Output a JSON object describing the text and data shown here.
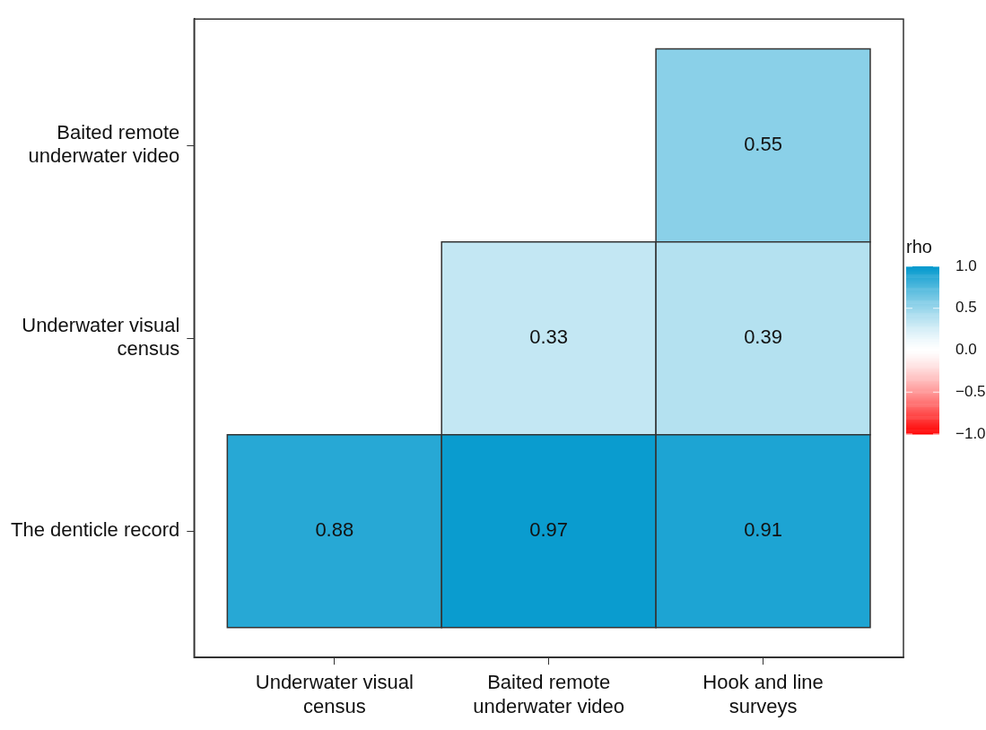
{
  "chart_data": {
    "type": "heatmap",
    "categories": [
      "Underwater visual census",
      "Baited remote underwater video",
      "Hook and line surveys"
    ],
    "y_categories": [
      "Baited remote underwater video",
      "Underwater visual census",
      "The denticle record"
    ],
    "cells": [
      [
        null,
        null,
        0.55
      ],
      [
        null,
        0.33,
        0.39
      ],
      [
        0.88,
        0.97,
        0.91
      ]
    ],
    "clabel": "rho",
    "clim": [
      -1,
      1
    ],
    "cticks": [
      {
        "value": 1,
        "label": "1.0"
      },
      {
        "value": 0.5,
        "label": "0.5"
      },
      {
        "value": 0,
        "label": "0.0"
      },
      {
        "value": -0.5,
        "label": "−0.5"
      },
      {
        "value": -1,
        "label": "−1.0"
      }
    ],
    "data_labels": true
  }
}
